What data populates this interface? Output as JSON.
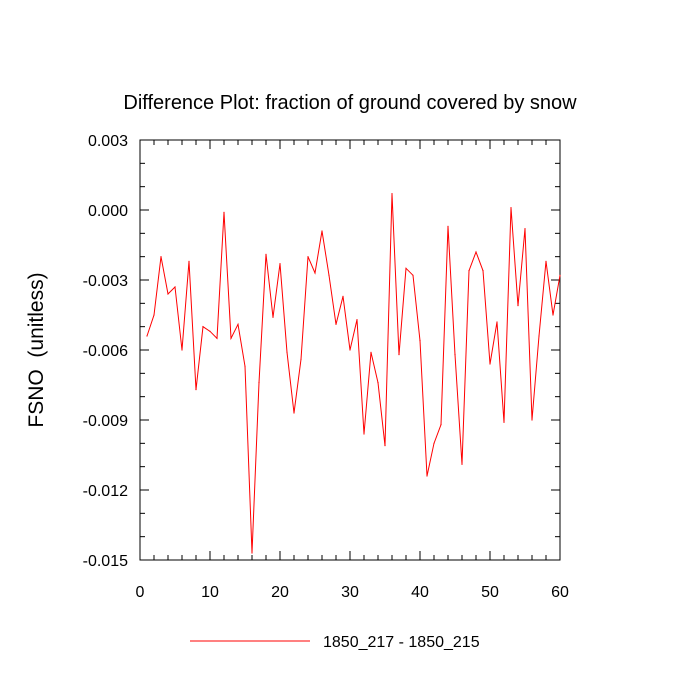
{
  "chart_data": {
    "type": "line",
    "title": "Difference Plot: fraction of ground covered by snow",
    "xlabel": "",
    "ylabel": "FSNO  (unitless)",
    "xlim": [
      0,
      60
    ],
    "ylim": [
      -0.015,
      0.003
    ],
    "xticks": [
      0,
      10,
      20,
      30,
      40,
      50,
      60
    ],
    "xtick_labels": [
      "0",
      "10",
      "20",
      "30",
      "40",
      "50",
      "60"
    ],
    "yticks": [
      0.003,
      0.0,
      -0.003,
      -0.006,
      -0.009,
      -0.012,
      -0.015
    ],
    "ytick_labels": [
      "0.003",
      "0.000",
      "-0.003",
      "-0.006",
      "-0.009",
      "-0.012",
      "-0.015"
    ],
    "legend_position": "bottom-center",
    "grid": false,
    "series": [
      {
        "name": "1850_217 - 1850_215",
        "color": "#ff0000",
        "x": [
          1,
          2,
          3,
          4,
          5,
          6,
          7,
          8,
          9,
          10,
          11,
          12,
          13,
          14,
          15,
          16,
          17,
          18,
          19,
          20,
          21,
          22,
          23,
          24,
          25,
          26,
          27,
          28,
          29,
          30,
          31,
          32,
          33,
          34,
          35,
          36,
          37,
          38,
          39,
          40,
          41,
          42,
          43,
          44,
          45,
          46,
          47,
          48,
          49,
          50,
          51,
          52,
          53,
          54,
          55,
          56,
          57,
          58,
          59,
          60
        ],
        "values": [
          -0.0054,
          -0.0045,
          -0.002,
          -0.0036,
          -0.0033,
          -0.006,
          -0.0022,
          -0.0077,
          -0.005,
          -0.0052,
          -0.0055,
          -0.0001,
          -0.0055,
          -0.0049,
          -0.0067,
          -0.0147,
          -0.0074,
          -0.0019,
          -0.0046,
          -0.0023,
          -0.0061,
          -0.0087,
          -0.0064,
          -0.002,
          -0.0027,
          -0.0009,
          -0.0028,
          -0.0049,
          -0.0037,
          -0.006,
          -0.0047,
          -0.0096,
          -0.0061,
          -0.0074,
          -0.0101,
          0.0007,
          -0.0062,
          -0.0025,
          -0.0028,
          -0.0056,
          -0.0114,
          -0.01,
          -0.0092,
          -0.0007,
          -0.0062,
          -0.0109,
          -0.0026,
          -0.0018,
          -0.0026,
          -0.0066,
          -0.0048,
          -0.0091,
          0.0001,
          -0.0041,
          -0.0008,
          -0.009,
          -0.0054,
          -0.0022,
          -0.0045,
          -0.0028
        ]
      }
    ]
  }
}
